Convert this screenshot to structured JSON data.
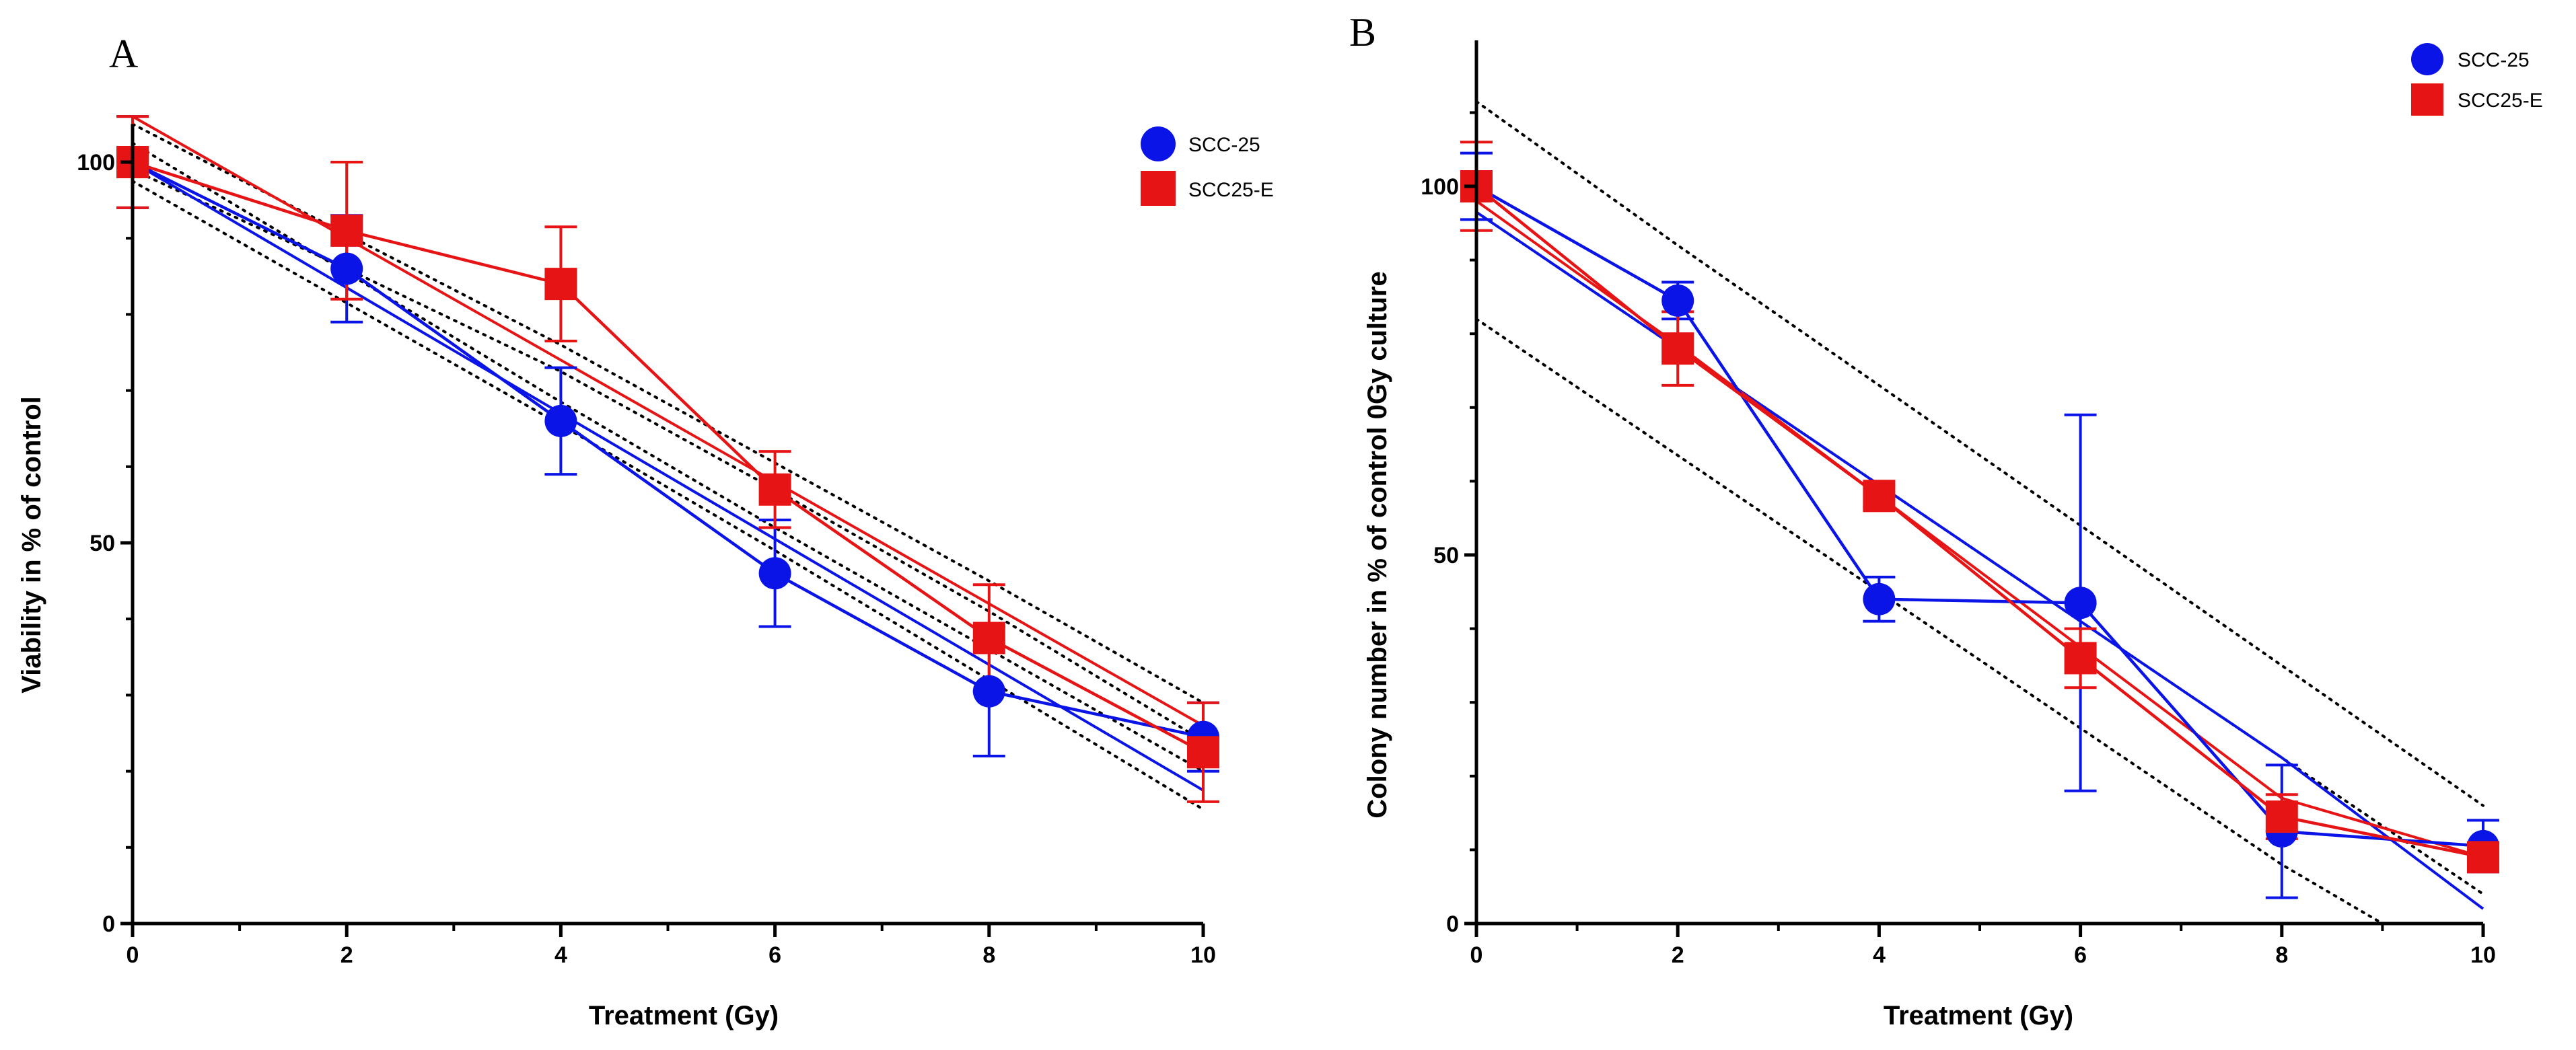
{
  "colors": {
    "scc25": "#0a14e6",
    "scc25e": "#e61414",
    "axis": "#000000"
  },
  "chart_data": [
    {
      "type": "line",
      "panel_label": "A",
      "xlabel": "Treatment (Gy)",
      "ylabel": "Viability in % of control",
      "xlim": [
        0,
        10
      ],
      "ylim": [
        0,
        100
      ],
      "x_ticks": [
        0,
        2,
        4,
        6,
        8,
        10
      ],
      "y_ticks": [
        0,
        50,
        100
      ],
      "grid": false,
      "legend_position": "top-right",
      "x": [
        0,
        2,
        4,
        6,
        8,
        10
      ],
      "series": [
        {
          "name": "SCC-25",
          "marker": "circle",
          "color": "#0a14e6",
          "values": [
            100,
            86,
            66,
            46,
            30.5,
            24.5
          ],
          "error": [
            6,
            7,
            7,
            7,
            8.5,
            4.5
          ],
          "fit": [
            100,
            83.5,
            67,
            50.5,
            34,
            17.5
          ],
          "ci_upper": [
            102.5,
            85.5,
            68.5,
            52,
            36,
            20
          ],
          "ci_lower": [
            97.5,
            81.5,
            65.5,
            49,
            32,
            15
          ]
        },
        {
          "name": "SCC25-E",
          "marker": "square",
          "color": "#e61414",
          "values": [
            100,
            91,
            84,
            57,
            37.5,
            22.5
          ],
          "error": [
            6,
            9,
            7.5,
            5,
            7,
            6.5
          ],
          "fit": [
            106,
            90,
            74,
            58,
            42,
            26
          ],
          "ci_upper": [
            105,
            90.5,
            76,
            60.5,
            45,
            29
          ],
          "ci_lower": [
            99,
            86,
            72.5,
            57,
            41,
            24
          ]
        }
      ]
    },
    {
      "type": "line",
      "panel_label": "B",
      "xlabel": "Treatment (Gy)",
      "ylabel": "Colony number in % of control 0Gy culture",
      "xlim": [
        0,
        10
      ],
      "ylim": [
        0,
        120
      ],
      "x_ticks": [
        0,
        2,
        4,
        6,
        8,
        10
      ],
      "y_ticks": [
        0,
        50,
        100
      ],
      "grid": false,
      "legend_position": "top-right",
      "x": [
        0,
        2,
        4,
        6,
        8,
        10
      ],
      "series": [
        {
          "name": "SCC-25",
          "marker": "circle",
          "color": "#0a14e6",
          "values": [
            100,
            84.5,
            44,
            43.5,
            12.5,
            10.5
          ],
          "error": [
            4.5,
            2.5,
            3,
            25.5,
            9,
            3.5
          ],
          "fit": [
            96.5,
            78,
            59.5,
            41,
            22.5,
            2
          ]
        },
        {
          "name": "SCC25-E",
          "marker": "square",
          "color": "#e61414",
          "values": [
            100,
            78,
            58,
            36,
            14.5,
            9
          ],
          "error": [
            6,
            5,
            1.5,
            4,
            3,
            1.5
          ],
          "fit": [
            98,
            78.5,
            58,
            37.5,
            17,
            9
          ]
        }
      ],
      "bands": [
        [
          111.5,
          92,
          73,
          54,
          35,
          16
        ],
        [
          96.5,
          78,
          59.5,
          41,
          22.5,
          4
        ],
        [
          82,
          63.5,
          45,
          26.5,
          8,
          -8
        ]
      ]
    }
  ]
}
